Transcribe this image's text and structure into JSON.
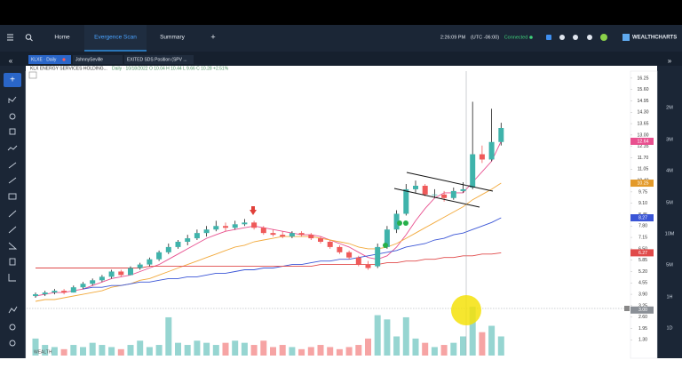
{
  "nav": {
    "items": [
      "Home",
      "Evergence Scan",
      "Summary"
    ],
    "add": "+",
    "time": "2:26:09 PM",
    "timezone": "(UTC -06:00)",
    "status": "Connected",
    "brand": "WEALTHCHARTS"
  },
  "tabs": [
    "KLXE · Daily",
    "JohnnySeville",
    "EXITED SDS Position (SPV ..."
  ],
  "periods": [
    "2M",
    "3M",
    "4M",
    "5M",
    "10M",
    "5M",
    "1H",
    "1D"
  ],
  "chart": {
    "type": "candlestick",
    "symbol": "KLX ENERGY SERVICES HOLDING...",
    "info": "Daily · 10/18/2022 O 10.04 H 10.44 L 9.66 C 10.28 +2.51%",
    "watermark": "WEALTH",
    "ylim": [
      0.4,
      16.65
    ],
    "yticks": [
      16.25,
      {
        "value": 15.6,
        "label": "15.60"
      },
      14.95,
      {
        "value": 14.3,
        "label": "14.30"
      },
      13.65,
      {
        "value": 13,
        "label": "13.00"
      },
      12.35,
      {
        "value": 11.7,
        "label": "11.70"
      },
      11.05,
      {
        "value": 10.4,
        "label": "10.40"
      },
      9.75,
      {
        "value": 9.1,
        "label": "9.10"
      },
      8.45,
      {
        "value": 7.8,
        "label": "7.80"
      },
      7.15,
      {
        "value": 6.5,
        "label": "6.50"
      },
      5.85,
      {
        "value": 5.2,
        "label": "5.20"
      },
      4.55,
      {
        "value": 3.9,
        "label": "3.90"
      },
      3.25,
      {
        "value": 2.6,
        "label": "2.60"
      },
      1.95,
      {
        "value": 1.3,
        "label": "1.30"
      }
    ],
    "up_color": "#3fb3ab",
    "down_color": "#ef5a5a",
    "candles": [
      [
        3.8,
        4.0,
        3.7,
        3.9
      ],
      [
        3.9,
        4.1,
        3.8,
        4.0
      ],
      [
        4.0,
        4.2,
        3.9,
        4.1
      ],
      [
        4.1,
        4.2,
        3.9,
        4.0
      ],
      [
        4.0,
        4.4,
        4.0,
        4.3
      ],
      [
        4.3,
        4.6,
        4.2,
        4.5
      ],
      [
        4.5,
        4.8,
        4.4,
        4.7
      ],
      [
        4.7,
        5.0,
        4.6,
        4.9
      ],
      [
        4.9,
        5.3,
        4.8,
        5.2
      ],
      [
        5.2,
        5.3,
        4.9,
        5.0
      ],
      [
        5.0,
        5.5,
        5.0,
        5.4
      ],
      [
        5.4,
        5.7,
        5.3,
        5.6
      ],
      [
        5.6,
        6.0,
        5.5,
        5.9
      ],
      [
        5.9,
        6.4,
        5.8,
        6.3
      ],
      [
        6.3,
        6.8,
        6.2,
        6.6
      ],
      [
        6.6,
        7.0,
        6.5,
        6.9
      ],
      [
        6.9,
        7.3,
        6.7,
        7.1
      ],
      [
        7.1,
        7.6,
        7.0,
        7.4
      ],
      [
        7.4,
        7.8,
        7.2,
        7.6
      ],
      [
        7.6,
        8.1,
        7.5,
        7.8
      ],
      [
        7.8,
        8.0,
        7.5,
        7.7
      ],
      [
        7.7,
        8.1,
        7.6,
        7.9
      ],
      [
        7.9,
        8.2,
        7.8,
        8.0
      ],
      [
        8.0,
        8.1,
        7.6,
        7.7
      ],
      [
        7.7,
        7.8,
        7.3,
        7.4
      ],
      [
        7.4,
        7.6,
        7.2,
        7.3
      ],
      [
        7.3,
        7.5,
        7.1,
        7.2
      ],
      [
        7.2,
        7.5,
        7.1,
        7.4
      ],
      [
        7.4,
        7.5,
        7.2,
        7.3
      ],
      [
        7.3,
        7.4,
        7.0,
        7.1
      ],
      [
        7.1,
        7.2,
        6.8,
        6.9
      ],
      [
        6.9,
        7.0,
        6.5,
        6.6
      ],
      [
        6.6,
        6.7,
        6.2,
        6.3
      ],
      [
        6.3,
        6.4,
        5.9,
        6.0
      ],
      [
        6.0,
        6.1,
        5.5,
        5.6
      ],
      [
        5.6,
        5.8,
        5.3,
        5.4
      ],
      [
        5.5,
        6.8,
        5.4,
        6.6
      ],
      [
        6.6,
        7.8,
        6.5,
        7.6
      ],
      [
        7.6,
        8.7,
        7.4,
        8.5
      ],
      [
        8.5,
        10.2,
        8.4,
        9.9
      ],
      [
        9.9,
        10.4,
        9.7,
        10.1
      ],
      [
        10.1,
        10.2,
        9.5,
        9.6
      ],
      [
        9.6,
        9.9,
        9.4,
        9.6
      ],
      [
        9.6,
        9.8,
        9.2,
        9.4
      ],
      [
        9.4,
        10.0,
        9.3,
        9.8
      ],
      [
        9.8,
        10.3,
        9.7,
        9.9
      ],
      [
        10.0,
        14.9,
        9.9,
        11.9
      ],
      [
        11.9,
        12.4,
        11.4,
        11.6
      ],
      [
        11.6,
        14.5,
        11.5,
        12.6
      ],
      [
        12.6,
        13.7,
        12.4,
        13.4
      ]
    ],
    "volume": [
      0.8,
      0.5,
      0.4,
      0.3,
      0.5,
      0.4,
      0.6,
      0.5,
      0.4,
      0.3,
      0.5,
      0.7,
      0.4,
      0.5,
      1.8,
      0.6,
      0.5,
      0.7,
      0.6,
      0.5,
      0.6,
      0.7,
      0.6,
      0.5,
      0.7,
      0.4,
      0.5,
      0.4,
      0.3,
      0.4,
      0.5,
      0.4,
      0.3,
      0.4,
      0.5,
      0.8,
      1.9,
      1.7,
      0.9,
      1.8,
      0.8,
      0.6,
      0.4,
      0.5,
      0.6,
      0.9,
      2.3,
      1.1,
      1.4,
      0.9
    ],
    "series": [
      {
        "color": "#e8508f",
        "values": [
          3.8,
          3.9,
          4.0,
          4.0,
          4.1,
          4.2,
          4.4,
          4.6,
          4.8,
          4.9,
          5.0,
          5.2,
          5.4,
          5.6,
          5.9,
          6.2,
          6.5,
          6.8,
          7.1,
          7.3,
          7.5,
          7.6,
          7.7,
          7.8,
          7.7,
          7.6,
          7.5,
          7.4,
          7.3,
          7.3,
          7.2,
          7.0,
          6.8,
          6.6,
          6.3,
          6.0,
          5.9,
          6.1,
          6.6,
          7.3,
          8.1,
          8.8,
          9.4,
          9.7,
          9.7,
          9.7,
          10.3,
          10.9,
          11.5,
          12.64
        ]
      },
      {
        "color": "#f2a93b",
        "values": [
          3.5,
          3.6,
          3.6,
          3.7,
          3.8,
          3.9,
          4.0,
          4.1,
          4.3,
          4.4,
          4.5,
          4.7,
          4.8,
          5.0,
          5.2,
          5.4,
          5.6,
          5.8,
          6.0,
          6.2,
          6.4,
          6.6,
          6.7,
          6.9,
          7.0,
          7.1,
          7.2,
          7.2,
          7.2,
          7.2,
          7.1,
          7.0,
          6.9,
          6.8,
          6.6,
          6.5,
          6.5,
          6.6,
          6.8,
          7.1,
          7.4,
          7.7,
          8.0,
          8.3,
          8.6,
          8.9,
          9.3,
          9.6,
          9.9,
          10.25
        ]
      },
      {
        "color": "#3a55d6",
        "values": [
          null,
          null,
          null,
          null,
          null,
          4.2,
          4.3,
          4.3,
          4.4,
          4.4,
          4.5,
          4.6,
          4.6,
          4.7,
          4.8,
          4.8,
          4.9,
          4.9,
          5.0,
          5.1,
          5.1,
          5.2,
          5.3,
          5.3,
          5.4,
          5.4,
          5.5,
          5.6,
          5.6,
          5.7,
          5.8,
          5.8,
          5.9,
          5.9,
          6.0,
          6.1,
          6.2,
          6.3,
          6.4,
          6.6,
          6.7,
          6.8,
          7.0,
          7.1,
          7.3,
          7.4,
          7.6,
          7.8,
          8.0,
          8.27
        ]
      },
      {
        "color": "#e04a4a",
        "values": [
          5.4,
          5.4,
          5.4,
          5.4,
          5.4,
          5.4,
          5.4,
          5.4,
          5.4,
          5.4,
          5.4,
          5.4,
          5.5,
          5.5,
          5.5,
          5.5,
          5.5,
          5.5,
          5.5,
          5.5,
          5.5,
          5.5,
          5.5,
          5.5,
          5.5,
          5.5,
          5.5,
          5.5,
          5.5,
          5.5,
          5.6,
          5.6,
          5.6,
          5.6,
          5.6,
          5.6,
          5.6,
          5.7,
          5.7,
          5.8,
          5.8,
          5.9,
          5.9,
          6.0,
          6.0,
          6.1,
          6.1,
          6.2,
          6.2,
          6.27
        ]
      }
    ],
    "badges": [
      {
        "value": 12.64,
        "color": "#e8508f"
      },
      {
        "value": 10.25,
        "color": "#e39a2a"
      },
      {
        "value": 8.27,
        "color": "#3a55d6"
      },
      {
        "value": 6.27,
        "color": "#e04a4a"
      },
      {
        "value": 3,
        "label": "3.00",
        "color": "#8a8f96"
      }
    ]
  }
}
